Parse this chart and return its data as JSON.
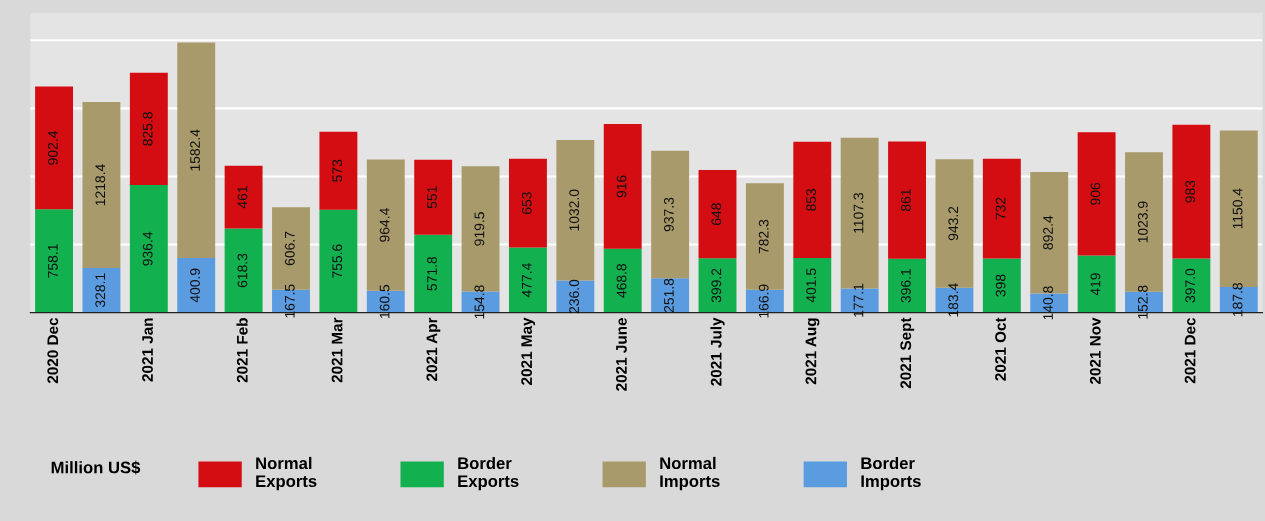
{
  "chart_data": {
    "type": "bar",
    "stacked": true,
    "legend_title": "Million US$",
    "legend": "bottom",
    "grid": "y",
    "tick_labels": "x",
    "categories": [
      "2020 Dec",
      null,
      "2021 Jan",
      null,
      "2021 Feb",
      null,
      "2021 Mar",
      null,
      "2021 Apr",
      null,
      "2021 May",
      null,
      "2021 June",
      null,
      "2021 July",
      null,
      "2021 Aug",
      null,
      "2021 Sept",
      null,
      "2021 Oct",
      null,
      "2021 Nov",
      null,
      "2021 Dec",
      null
    ],
    "ylim": [
      0,
      2200
    ],
    "yticks": [
      {
        "value": 500,
        "label": null
      },
      {
        "value": 1000,
        "label": null
      },
      {
        "value": 1500,
        "label": null
      },
      {
        "value": 2000,
        "label": null
      }
    ],
    "series": [
      {
        "name": "Border Exports",
        "color": "#12b04f",
        "values": [
          758.1,
          null,
          936.4,
          null,
          618.3,
          null,
          755.6,
          null,
          571.8,
          null,
          477.4,
          null,
          468.8,
          null,
          399.2,
          null,
          401.5,
          null,
          396.1,
          null,
          398,
          null,
          419,
          null,
          397.0,
          null
        ],
        "value_labels": [
          "758.1",
          null,
          "936.4",
          null,
          "618.3",
          null,
          "755.6",
          null,
          "571.8",
          null,
          "477.4",
          null,
          "468.8",
          null,
          "399.2",
          null,
          "401.5",
          null,
          "396.1",
          null,
          "398",
          null,
          "419",
          null,
          "397.0",
          null
        ]
      },
      {
        "name": "Normal Exports",
        "color": "#d40d12",
        "values": [
          902.4,
          null,
          825.8,
          null,
          461,
          null,
          573,
          null,
          551,
          null,
          653,
          null,
          916,
          null,
          648,
          null,
          853,
          null,
          861,
          null,
          732,
          null,
          906,
          null,
          983,
          null
        ],
        "value_labels": [
          "902.4",
          null,
          "825.8",
          null,
          "461",
          null,
          "573",
          null,
          "551",
          null,
          "653",
          null,
          "916",
          null,
          "648",
          null,
          "853",
          null,
          "861",
          null,
          "732",
          null,
          "906",
          null,
          "983",
          null
        ]
      },
      {
        "name": "Border Imports",
        "color": "#5b9be0",
        "values": [
          null,
          328.1,
          null,
          400.9,
          null,
          167.5,
          null,
          160.5,
          null,
          154.8,
          null,
          236.0,
          null,
          251.8,
          null,
          166.9,
          null,
          177.1,
          null,
          183.4,
          null,
          140.8,
          null,
          152.8,
          null,
          187.8
        ],
        "value_labels": [
          null,
          "328.1",
          null,
          "400.9",
          null,
          "167.5",
          null,
          "160.5",
          null,
          "154.8",
          null,
          "236.0",
          null,
          "251.8",
          null,
          "166.9",
          null,
          "177.1",
          null,
          "183.4",
          null,
          "140.8",
          null,
          "152.8",
          null,
          "187.8"
        ]
      },
      {
        "name": "Normal Imports",
        "color": "#a99a6b",
        "values": [
          null,
          1218.4,
          null,
          1582.4,
          null,
          606.7,
          null,
          964.4,
          null,
          919.5,
          null,
          1032.0,
          null,
          937.3,
          null,
          782.3,
          null,
          1107.3,
          null,
          943.2,
          null,
          892.4,
          null,
          1023.9,
          null,
          1150.4
        ],
        "value_labels": [
          null,
          "1218.4",
          null,
          "1582.4",
          null,
          "606.7",
          null,
          "964.4",
          null,
          "919.5",
          null,
          "1032.0",
          null,
          "937.3",
          null,
          "782.3",
          null,
          "1107.3",
          null,
          "943.2",
          null,
          "892.4",
          null,
          "1023.9",
          null,
          "1150.4"
        ]
      }
    ]
  }
}
